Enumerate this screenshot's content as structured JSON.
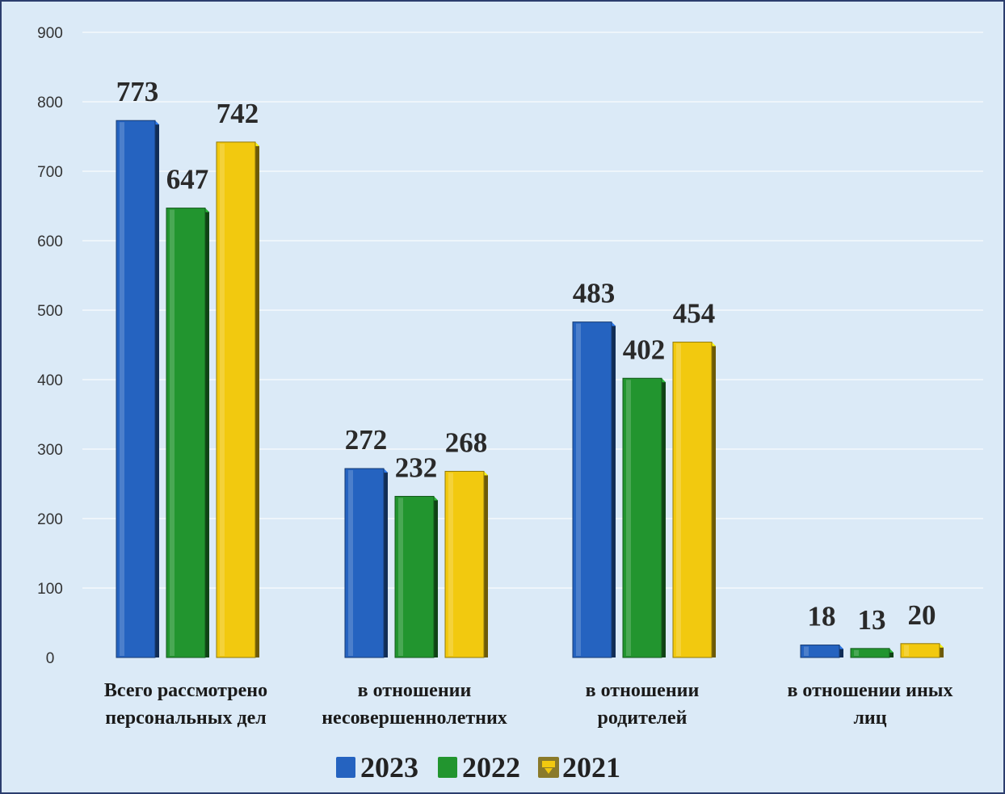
{
  "chart_data": {
    "type": "bar",
    "categories": [
      [
        "Всего рассмотрено",
        "персональных дел"
      ],
      [
        "в отношении",
        "несовершеннолетних"
      ],
      [
        "в отношении",
        "родителей"
      ],
      [
        "в отношении иных",
        "лиц"
      ]
    ],
    "series": [
      {
        "name": "2023",
        "color": "#2563c0",
        "values": [
          773,
          272,
          483,
          18
        ]
      },
      {
        "name": "2022",
        "color": "#22952f",
        "values": [
          647,
          232,
          402,
          13
        ]
      },
      {
        "name": "2021",
        "color": "#f2c90f",
        "values": [
          742,
          268,
          454,
          20
        ]
      }
    ],
    "y_ticks": [
      0,
      100,
      200,
      300,
      400,
      500,
      600,
      700,
      800,
      900
    ],
    "ylim": [
      0,
      900
    ],
    "grid": true,
    "legend": "bottom",
    "data_labels": true
  }
}
